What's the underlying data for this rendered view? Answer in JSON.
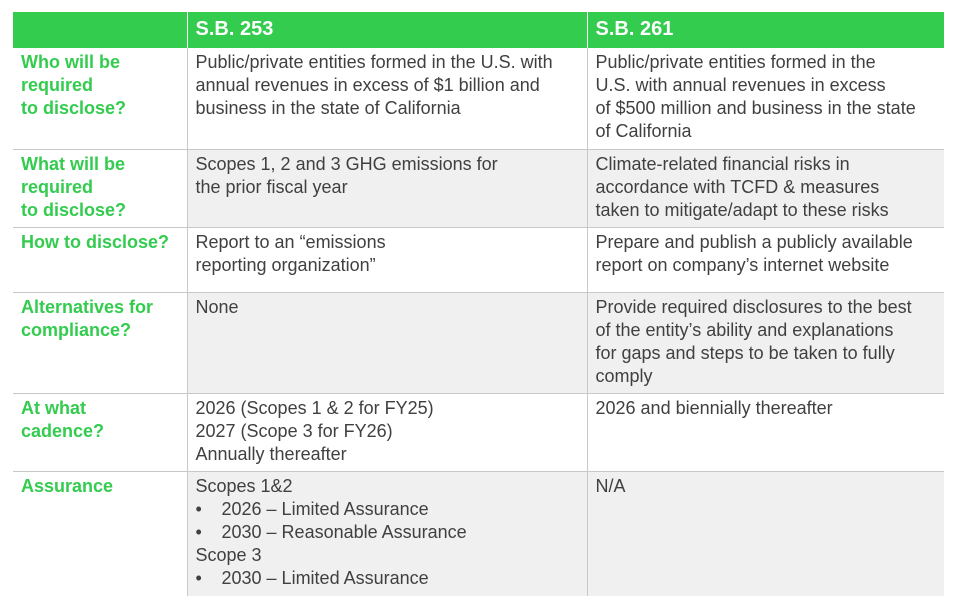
{
  "header": {
    "question_col": "",
    "col_a": "S.B. 253",
    "col_b": "S.B. 261"
  },
  "rows": [
    {
      "question": [
        "Who will be",
        "required",
        "to disclose?"
      ],
      "a": [
        "Public/private entities formed in the U.S. with",
        "annual revenues in excess of $1 billion and",
        "business in the state of California"
      ],
      "b": [
        "Public/private entities formed in the",
        "U.S. with annual revenues in excess",
        "of $500 million and business in the state",
        "of California"
      ]
    },
    {
      "question": [
        "What will be",
        "required",
        "to disclose?"
      ],
      "a": [
        "Scopes 1, 2 and 3 GHG emissions for",
        "the prior fiscal year"
      ],
      "b": [
        "Climate-related financial risks in",
        "accordance with TCFD & measures",
        "taken to mitigate/adapt to these risks"
      ]
    },
    {
      "question": [
        "How to disclose?"
      ],
      "a": [
        "Report to an “emissions",
        "reporting organization”"
      ],
      "b": [
        "Prepare and publish a publicly available",
        "report on company’s internet website"
      ]
    },
    {
      "question": [
        "Alternatives for",
        "compliance?"
      ],
      "a": [
        "None"
      ],
      "b": [
        "Provide required disclosures to the best",
        "of the entity’s ability and explanations",
        "for gaps and steps to be taken to fully",
        "comply"
      ]
    },
    {
      "question": [
        "At what",
        "cadence?"
      ],
      "a": [
        "2026 (Scopes 1 & 2 for FY25)",
        "2027 (Scope 3 for FY26)",
        "Annually thereafter"
      ],
      "b": [
        "2026 and biennially thereafter"
      ]
    },
    {
      "question": [
        "Assurance"
      ],
      "a_assurance": {
        "group1_label": "Scopes 1&2",
        "group1_items": [
          "2026 – Limited Assurance",
          "2030 – Reasonable Assurance"
        ],
        "group2_label": "Scope 3",
        "group2_items": [
          "2030 – Limited Assurance"
        ],
        "bullet": "•"
      },
      "b": [
        "N/A"
      ]
    }
  ]
}
